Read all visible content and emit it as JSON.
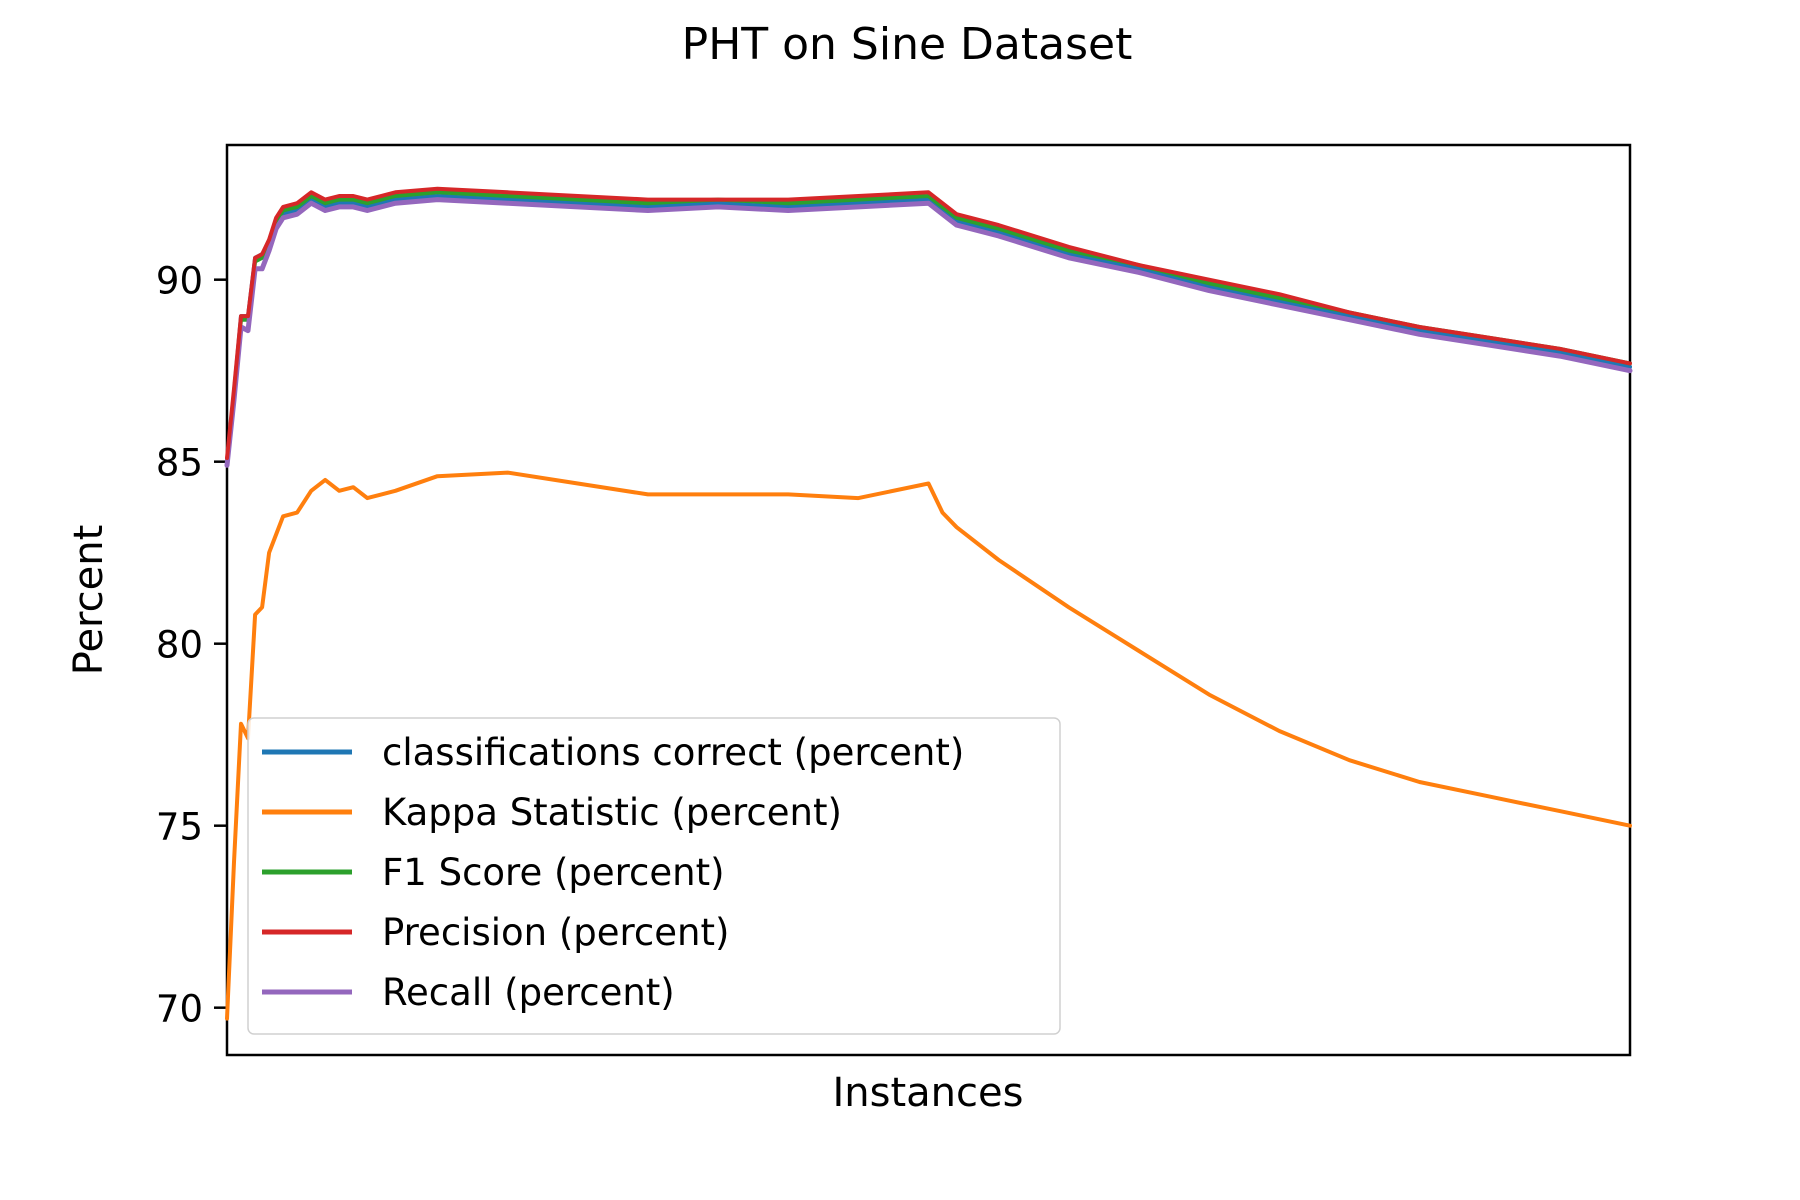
{
  "chart_data": {
    "type": "line",
    "title": "PHT on Sine Dataset",
    "xlabel": "Instances",
    "ylabel": "Percent",
    "x_ticks_visible": false,
    "xlim": [
      0,
      1
    ],
    "ylim": [
      68.7,
      93.7
    ],
    "yticks": [
      70,
      75,
      80,
      85,
      90
    ],
    "ytick_labels": [
      "70",
      "75",
      "80",
      "85",
      "90"
    ],
    "grid": false,
    "legend_position": "lower-left",
    "series": [
      {
        "name": "classifications correct (percent)",
        "color": "#1f77b4",
        "x": [
          0,
          0.005,
          0.01,
          0.015,
          0.02,
          0.025,
          0.03,
          0.035,
          0.04,
          0.05,
          0.06,
          0.07,
          0.08,
          0.09,
          0.1,
          0.12,
          0.15,
          0.2,
          0.25,
          0.3,
          0.35,
          0.4,
          0.45,
          0.5,
          0.51,
          0.52,
          0.55,
          0.6,
          0.65,
          0.7,
          0.75,
          0.8,
          0.85,
          0.9,
          0.95,
          1
        ],
        "y": [
          85.0,
          86.9,
          89.0,
          89.0,
          90.6,
          90.7,
          91.0,
          91.5,
          91.8,
          91.9,
          92.2,
          92.0,
          92.1,
          92.1,
          92.0,
          92.2,
          92.3,
          92.2,
          92.1,
          92.0,
          92.1,
          92.0,
          92.1,
          92.2,
          91.9,
          91.6,
          91.3,
          90.7,
          90.3,
          89.8,
          89.4,
          89.0,
          88.6,
          88.3,
          88.0,
          87.6
        ]
      },
      {
        "name": "Kappa Statistic (percent)",
        "color": "#ff7f0e",
        "x": [
          0,
          0.005,
          0.01,
          0.015,
          0.02,
          0.025,
          0.03,
          0.035,
          0.04,
          0.05,
          0.06,
          0.07,
          0.08,
          0.09,
          0.1,
          0.12,
          0.15,
          0.2,
          0.25,
          0.3,
          0.35,
          0.4,
          0.45,
          0.5,
          0.51,
          0.52,
          0.55,
          0.6,
          0.65,
          0.7,
          0.75,
          0.8,
          0.85,
          0.9,
          0.95,
          1
        ],
        "y": [
          69.7,
          74.0,
          77.8,
          77.4,
          80.8,
          81.0,
          82.5,
          83.0,
          83.5,
          83.6,
          84.2,
          84.5,
          84.2,
          84.3,
          84.0,
          84.2,
          84.6,
          84.7,
          84.4,
          84.1,
          84.1,
          84.1,
          84.0,
          84.4,
          83.6,
          83.2,
          82.3,
          81.0,
          79.8,
          78.6,
          77.6,
          76.8,
          76.2,
          75.8,
          75.4,
          75.0
        ]
      },
      {
        "name": "F1 Score (percent)",
        "color": "#2ca02c",
        "x": [
          0,
          0.005,
          0.01,
          0.015,
          0.02,
          0.025,
          0.03,
          0.035,
          0.04,
          0.05,
          0.06,
          0.07,
          0.08,
          0.09,
          0.1,
          0.12,
          0.15,
          0.2,
          0.25,
          0.3,
          0.35,
          0.4,
          0.45,
          0.5,
          0.51,
          0.52,
          0.55,
          0.6,
          0.65,
          0.7,
          0.75,
          0.8,
          0.85,
          0.9,
          0.95,
          1
        ],
        "y": [
          85.0,
          86.9,
          88.9,
          88.9,
          90.5,
          90.6,
          91.0,
          91.6,
          91.9,
          92.0,
          92.3,
          92.1,
          92.2,
          92.2,
          92.1,
          92.3,
          92.4,
          92.3,
          92.2,
          92.1,
          92.2,
          92.1,
          92.2,
          92.3,
          92.0,
          91.7,
          91.4,
          90.8,
          90.4,
          89.9,
          89.5,
          89.1,
          88.7,
          88.4,
          88.1,
          87.7
        ]
      },
      {
        "name": "Precision (percent)",
        "color": "#d62728",
        "x": [
          0,
          0.005,
          0.01,
          0.015,
          0.02,
          0.025,
          0.03,
          0.035,
          0.04,
          0.05,
          0.06,
          0.07,
          0.08,
          0.09,
          0.1,
          0.12,
          0.15,
          0.2,
          0.25,
          0.3,
          0.35,
          0.4,
          0.45,
          0.5,
          0.51,
          0.52,
          0.55,
          0.6,
          0.65,
          0.7,
          0.75,
          0.8,
          0.85,
          0.9,
          0.95,
          1
        ],
        "y": [
          85.1,
          87.0,
          89.0,
          89.0,
          90.6,
          90.7,
          91.1,
          91.7,
          92.0,
          92.1,
          92.4,
          92.2,
          92.3,
          92.3,
          92.2,
          92.4,
          92.5,
          92.4,
          92.3,
          92.2,
          92.2,
          92.2,
          92.3,
          92.4,
          92.1,
          91.8,
          91.5,
          90.9,
          90.4,
          90.0,
          89.6,
          89.1,
          88.7,
          88.4,
          88.1,
          87.7
        ]
      },
      {
        "name": "Recall (percent)",
        "color": "#9467bd",
        "x": [
          0,
          0.005,
          0.01,
          0.015,
          0.02,
          0.025,
          0.03,
          0.035,
          0.04,
          0.05,
          0.06,
          0.07,
          0.08,
          0.09,
          0.1,
          0.12,
          0.15,
          0.2,
          0.25,
          0.3,
          0.35,
          0.4,
          0.45,
          0.5,
          0.51,
          0.52,
          0.55,
          0.6,
          0.65,
          0.7,
          0.75,
          0.8,
          0.85,
          0.9,
          0.95,
          1
        ],
        "y": [
          84.9,
          86.7,
          88.7,
          88.6,
          90.3,
          90.3,
          90.8,
          91.4,
          91.7,
          91.8,
          92.1,
          91.9,
          92.0,
          92.0,
          91.9,
          92.1,
          92.2,
          92.1,
          92.0,
          91.9,
          92.0,
          91.9,
          92.0,
          92.1,
          91.8,
          91.5,
          91.2,
          90.6,
          90.2,
          89.7,
          89.3,
          88.9,
          88.5,
          88.2,
          87.9,
          87.5
        ]
      }
    ]
  }
}
